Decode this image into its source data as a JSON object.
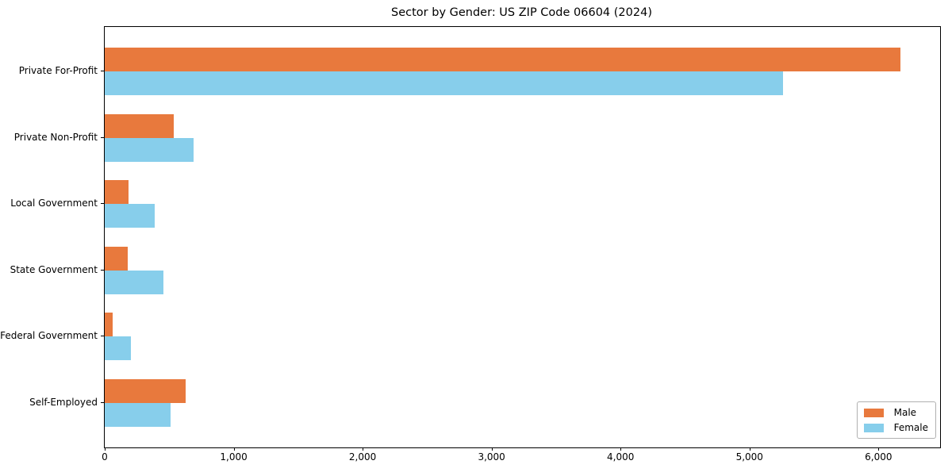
{
  "chart_data": {
    "type": "bar",
    "orientation": "horizontal",
    "title": "Sector by Gender: US ZIP Code 06604 (2024)",
    "categories": [
      "Private For-Profit",
      "Private Non-Profit",
      "Local Government",
      "State Government",
      "Federal Government",
      "Self-Employed"
    ],
    "series": [
      {
        "name": "Male",
        "color": "#e8793d",
        "values": [
          6170,
          535,
          185,
          180,
          60,
          625
        ]
      },
      {
        "name": "Female",
        "color": "#87ceeb",
        "values": [
          5260,
          690,
          390,
          455,
          200,
          510
        ]
      }
    ],
    "xlabel": "",
    "ylabel": "",
    "xlim": [
      0,
      6478
    ],
    "xticks": {
      "values": [
        0,
        1000,
        2000,
        3000,
        4000,
        5000,
        6000
      ],
      "labels": [
        "0",
        "1,000",
        "2,000",
        "3,000",
        "4,000",
        "5,000",
        "6,000"
      ]
    },
    "grid": false,
    "legend": {
      "position": "lower right"
    },
    "colors": {
      "male": "#e8793d",
      "female": "#87ceeb",
      "spine": "#000000",
      "legend_border": "#b0b0b0"
    }
  }
}
